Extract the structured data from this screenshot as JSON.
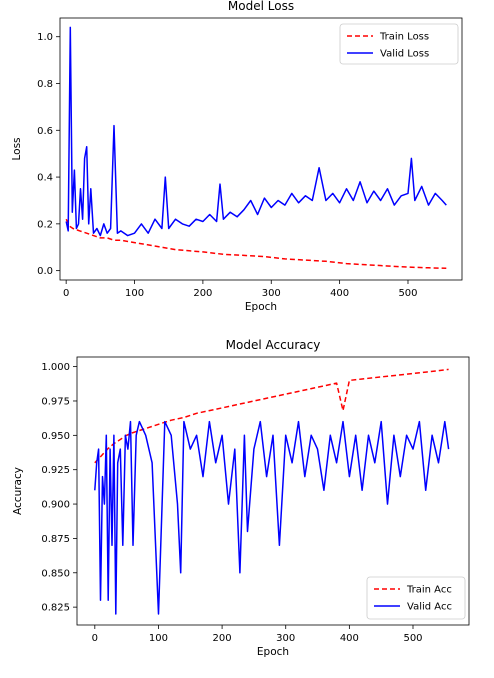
{
  "chart_data": [
    {
      "type": "line",
      "title": "Model Loss",
      "xlabel": "Epoch",
      "ylabel": "Loss",
      "xlim": [
        -9,
        579
      ],
      "ylim": [
        -0.04,
        1.08
      ],
      "xticks": [
        0,
        100,
        200,
        300,
        400,
        500
      ],
      "yticks": [
        0.0,
        0.2,
        0.4,
        0.6,
        0.8,
        1.0
      ],
      "ytick_labels": [
        "0.0",
        "0.2",
        "0.4",
        "0.6",
        "0.8",
        "1.0"
      ],
      "legend_position": "top-right",
      "grid": false,
      "series": [
        {
          "name": "Train Loss",
          "color": "#ff0000",
          "style": "dashed",
          "x": [
            0,
            5,
            10,
            20,
            30,
            40,
            50,
            60,
            70,
            80,
            100,
            120,
            140,
            160,
            180,
            200,
            230,
            260,
            290,
            320,
            350,
            380,
            410,
            440,
            470,
            500,
            530,
            556
          ],
          "y": [
            0.22,
            0.19,
            0.18,
            0.17,
            0.16,
            0.15,
            0.14,
            0.14,
            0.13,
            0.13,
            0.12,
            0.11,
            0.1,
            0.09,
            0.085,
            0.08,
            0.07,
            0.065,
            0.06,
            0.05,
            0.045,
            0.04,
            0.03,
            0.025,
            0.02,
            0.015,
            0.012,
            0.01
          ]
        },
        {
          "name": "Valid Loss",
          "color": "#0000ff",
          "style": "solid",
          "x": [
            0,
            3,
            6,
            9,
            12,
            15,
            18,
            21,
            24,
            27,
            30,
            33,
            36,
            40,
            45,
            50,
            55,
            60,
            65,
            70,
            75,
            80,
            90,
            100,
            110,
            120,
            130,
            140,
            145,
            150,
            160,
            170,
            180,
            190,
            200,
            210,
            220,
            225,
            230,
            240,
            250,
            260,
            270,
            280,
            290,
            300,
            310,
            320,
            330,
            340,
            350,
            360,
            370,
            380,
            390,
            400,
            410,
            420,
            430,
            440,
            450,
            460,
            470,
            480,
            490,
            500,
            505,
            510,
            520,
            530,
            540,
            550,
            556
          ],
          "y": [
            0.21,
            0.17,
            1.04,
            0.25,
            0.43,
            0.18,
            0.2,
            0.35,
            0.22,
            0.48,
            0.53,
            0.2,
            0.35,
            0.16,
            0.18,
            0.15,
            0.2,
            0.16,
            0.18,
            0.62,
            0.16,
            0.17,
            0.15,
            0.16,
            0.2,
            0.16,
            0.22,
            0.18,
            0.4,
            0.18,
            0.22,
            0.2,
            0.19,
            0.22,
            0.21,
            0.24,
            0.21,
            0.37,
            0.22,
            0.25,
            0.23,
            0.26,
            0.3,
            0.24,
            0.31,
            0.27,
            0.3,
            0.28,
            0.33,
            0.29,
            0.32,
            0.3,
            0.44,
            0.3,
            0.33,
            0.29,
            0.35,
            0.3,
            0.38,
            0.29,
            0.34,
            0.3,
            0.35,
            0.28,
            0.32,
            0.33,
            0.48,
            0.3,
            0.36,
            0.28,
            0.33,
            0.3,
            0.28
          ]
        }
      ]
    },
    {
      "type": "line",
      "title": "Model Accuracy",
      "xlabel": "Epoch",
      "ylabel": "Accuracy",
      "xlim": [
        -28,
        588
      ],
      "ylim": [
        0.812,
        1.007
      ],
      "xticks": [
        0,
        100,
        200,
        300,
        400,
        500
      ],
      "yticks": [
        0.825,
        0.85,
        0.875,
        0.9,
        0.925,
        0.95,
        0.975,
        1.0
      ],
      "ytick_labels": [
        "0.825",
        "0.850",
        "0.875",
        "0.900",
        "0.925",
        "0.950",
        "0.975",
        "1.000"
      ],
      "legend_position": "bottom-right",
      "grid": false,
      "series": [
        {
          "name": "Train Acc",
          "color": "#ff0000",
          "style": "dashed",
          "x": [
            0,
            10,
            20,
            30,
            40,
            50,
            60,
            80,
            100,
            120,
            140,
            160,
            180,
            200,
            220,
            240,
            260,
            280,
            300,
            320,
            340,
            360,
            380,
            390,
            400,
            420,
            440,
            460,
            480,
            500,
            520,
            540,
            556
          ],
          "y": [
            0.93,
            0.935,
            0.94,
            0.944,
            0.947,
            0.95,
            0.952,
            0.955,
            0.958,
            0.961,
            0.963,
            0.966,
            0.968,
            0.97,
            0.972,
            0.974,
            0.976,
            0.978,
            0.98,
            0.982,
            0.984,
            0.986,
            0.988,
            0.968,
            0.99,
            0.991,
            0.992,
            0.993,
            0.994,
            0.995,
            0.996,
            0.997,
            0.998
          ]
        },
        {
          "name": "Valid Acc",
          "color": "#0000ff",
          "style": "solid",
          "x": [
            0,
            3,
            6,
            9,
            12,
            15,
            18,
            21,
            24,
            27,
            30,
            33,
            36,
            40,
            44,
            48,
            52,
            56,
            60,
            65,
            70,
            80,
            90,
            100,
            110,
            120,
            130,
            135,
            140,
            150,
            160,
            170,
            180,
            190,
            200,
            210,
            220,
            228,
            235,
            240,
            250,
            260,
            270,
            280,
            290,
            300,
            310,
            320,
            330,
            340,
            350,
            360,
            370,
            380,
            390,
            400,
            410,
            420,
            430,
            440,
            450,
            460,
            470,
            480,
            490,
            500,
            510,
            520,
            530,
            540,
            550,
            556
          ],
          "y": [
            0.91,
            0.93,
            0.94,
            0.83,
            0.92,
            0.9,
            0.95,
            0.83,
            0.94,
            0.87,
            0.95,
            0.82,
            0.93,
            0.94,
            0.87,
            0.95,
            0.94,
            0.96,
            0.87,
            0.95,
            0.96,
            0.95,
            0.93,
            0.82,
            0.96,
            0.95,
            0.9,
            0.85,
            0.96,
            0.94,
            0.95,
            0.92,
            0.96,
            0.93,
            0.95,
            0.9,
            0.94,
            0.85,
            0.95,
            0.88,
            0.94,
            0.96,
            0.92,
            0.95,
            0.87,
            0.95,
            0.93,
            0.96,
            0.92,
            0.95,
            0.94,
            0.91,
            0.95,
            0.93,
            0.96,
            0.92,
            0.95,
            0.91,
            0.95,
            0.93,
            0.96,
            0.9,
            0.95,
            0.92,
            0.95,
            0.94,
            0.96,
            0.91,
            0.95,
            0.93,
            0.96,
            0.94
          ]
        }
      ]
    }
  ]
}
